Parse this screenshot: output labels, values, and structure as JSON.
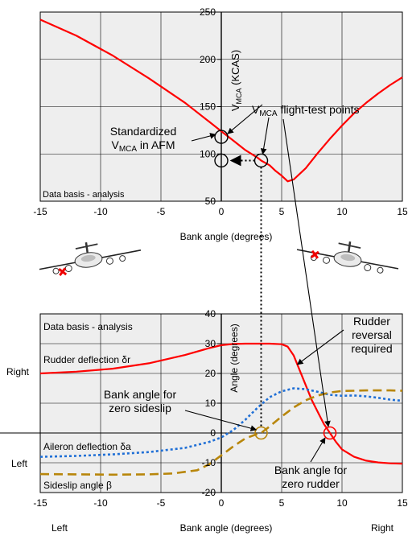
{
  "chart_data": [
    {
      "type": "line",
      "title": "",
      "xlabel": "Bank angle (degrees)",
      "ylabel": "V",
      "ylabel_sub": "MCA",
      "ylabel_suffix": " (KCAS)",
      "xlim": [
        -15,
        15
      ],
      "ylim": [
        50,
        250
      ],
      "xticks": [
        "-15",
        "-10",
        "-5",
        "0",
        "5",
        "10",
        "15"
      ],
      "yticks": [
        "50",
        "100",
        "150",
        "200",
        "250"
      ],
      "grid": true,
      "series": [
        {
          "name": "",
          "color": "#ff0000",
          "x": [
            -15,
            -12,
            -9,
            -6,
            -3,
            -1,
            0,
            1,
            2,
            3,
            3.3,
            4,
            4.5,
            5,
            5.5,
            6,
            7,
            8,
            9,
            10,
            11,
            12,
            13,
            14,
            15
          ],
          "y": [
            242,
            225,
            204,
            180,
            154,
            134,
            124,
            114,
            104,
            96,
            93,
            88,
            82,
            77,
            71,
            73,
            85,
            101,
            116,
            130,
            143,
            154,
            164,
            173,
            181
          ]
        }
      ],
      "annotations": {
        "data_basis": "Data basis - analysis",
        "standardized_line1": "Standardized",
        "standardized_line2_main": "V",
        "standardized_line2_sub": "MCA",
        "standardized_line2_suffix": " in AFM",
        "flight_test_main": "V",
        "flight_test_sub": "MCA",
        "flight_test_suffix": " flight-test points"
      },
      "markers": [
        {
          "x": 0,
          "y": 118
        },
        {
          "x": 0,
          "y": 93
        },
        {
          "x": 3.3,
          "y": 93
        }
      ]
    },
    {
      "type": "line",
      "title": "",
      "xlabel": "Bank angle (degrees)",
      "ylabel": "Angle (degrees)",
      "xlim": [
        -15,
        15
      ],
      "ylim": [
        -20,
        40
      ],
      "xticks": [
        "-15",
        "-10",
        "-5",
        "0",
        "5",
        "10",
        "15"
      ],
      "yticks": [
        "-20",
        "-10",
        "0",
        "10",
        "20",
        "30",
        "40"
      ],
      "grid": true,
      "series": [
        {
          "name": "Rudder deflection δr",
          "color": "#ff0000",
          "dash": "solid",
          "x": [
            -15,
            -12,
            -9,
            -6,
            -3,
            -1,
            0,
            1,
            2,
            3,
            4,
            5,
            5.5,
            6,
            6.5,
            7,
            7.5,
            8,
            8.5,
            9,
            9.5,
            10,
            11,
            12,
            13,
            14,
            15
          ],
          "y": [
            20,
            20.6,
            21.6,
            23.4,
            26.2,
            28.5,
            29.5,
            29.9,
            30,
            30,
            30,
            29.8,
            29,
            26,
            21,
            16,
            11,
            7,
            3,
            0,
            -3,
            -5.5,
            -8,
            -9.3,
            -9.9,
            -10.2,
            -10.3
          ]
        },
        {
          "name": "Aileron deflection δa",
          "color": "#1f6fd6",
          "dash": "dotted",
          "x": [
            -15,
            -12,
            -9,
            -6,
            -3,
            -1,
            0,
            1,
            2,
            3,
            4,
            5,
            6,
            7,
            8,
            9,
            10,
            11,
            12,
            13,
            14,
            15
          ],
          "y": [
            -8,
            -7.7,
            -7.2,
            -6.4,
            -5,
            -3,
            -1.5,
            1,
            4.5,
            8.5,
            12,
            14,
            15,
            14.7,
            13.8,
            12.8,
            12.5,
            12.6,
            12.3,
            11.8,
            11.2,
            10.8
          ]
        },
        {
          "name": "Sideslip angle β",
          "color": "#b8860b",
          "dash": "dashed",
          "x": [
            -15,
            -12,
            -9,
            -6,
            -4,
            -2,
            -1,
            0,
            1,
            2,
            3,
            3.3,
            4,
            5,
            6,
            7,
            8,
            9,
            10,
            11,
            12,
            13,
            14,
            15
          ],
          "y": [
            -13.8,
            -13.9,
            -14,
            -13.9,
            -13.6,
            -12.5,
            -10.5,
            -7.5,
            -4.5,
            -1.8,
            -0.3,
            0,
            2.2,
            5.5,
            8.6,
            11,
            12.6,
            13.6,
            14.1,
            14.2,
            14.3,
            14.3,
            14.3,
            14.2
          ]
        }
      ],
      "annotations": {
        "data_basis": "Data basis - analysis",
        "rudder_reversal_1": "Rudder",
        "rudder_reversal_2": "reversal",
        "rudder_reversal_3": "required",
        "zero_sideslip_1": "Bank angle for",
        "zero_sideslip_2": "zero sideslip",
        "zero_rudder_1": "Bank angle for",
        "zero_rudder_2": "zero rudder"
      },
      "side_labels": {
        "right": "Right",
        "left": "Left",
        "bottom_left": "Left",
        "bottom_right": "Right"
      },
      "markers": [
        {
          "x": 3.3,
          "y": 0,
          "color": "#b8860b"
        },
        {
          "x": 9,
          "y": 0,
          "color": "#ff0000"
        }
      ]
    }
  ]
}
